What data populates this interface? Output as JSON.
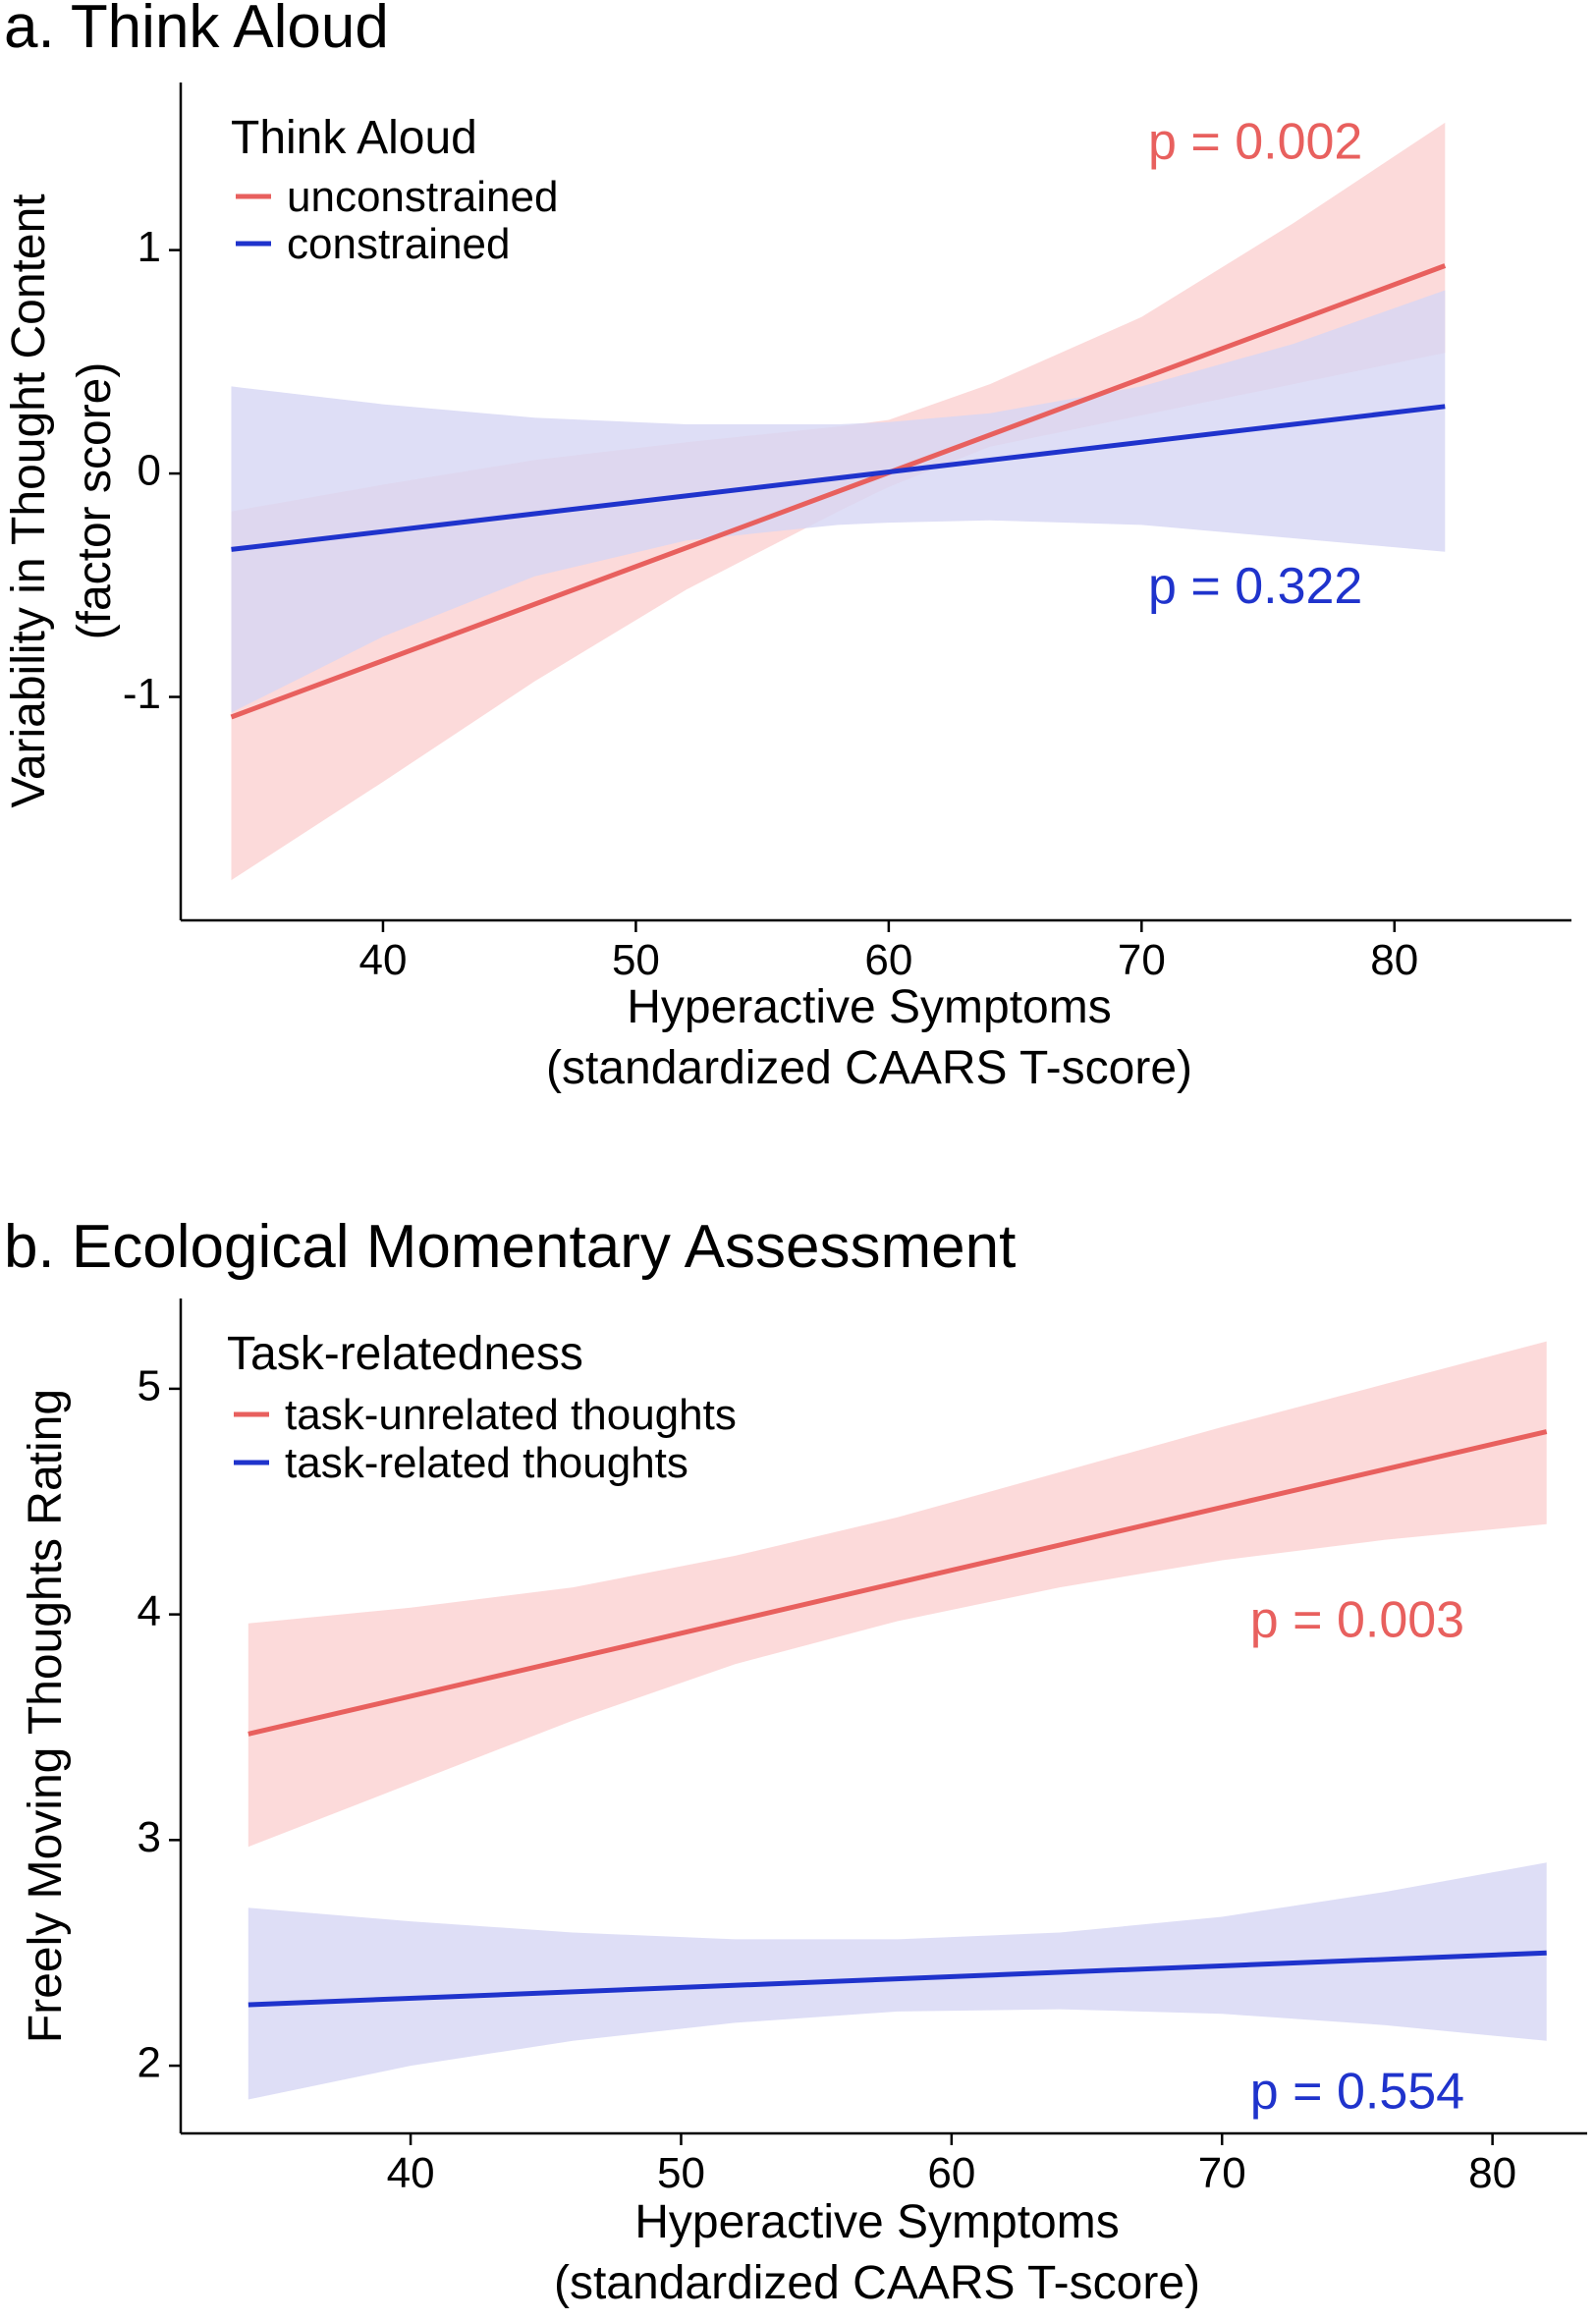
{
  "chart_data": [
    {
      "type": "line",
      "title": "a. Think Aloud",
      "xlabel": "Hyperactive Symptoms",
      "xlabel2": "(standardized CAARS T-score)",
      "ylabel": "Variability in Thought Content",
      "ylabel2": "(factor score)",
      "xlim": [
        32,
        87
      ],
      "ylim": [
        -2.0,
        1.75
      ],
      "xticks": [
        40,
        50,
        60,
        70,
        80
      ],
      "yticks": [
        -1,
        0,
        1
      ],
      "xtick_labels": [
        "40",
        "50",
        "60",
        "70",
        "80"
      ],
      "ytick_labels": [
        "-1",
        "0",
        "1"
      ],
      "legend_title": "Think Aloud",
      "legend_position": "top-left",
      "grid": false,
      "series": [
        {
          "name": "unconstrained",
          "color": "#e8605e",
          "band_color": "#fcd4d4",
          "x": [
            34,
            82
          ],
          "y": [
            -1.09,
            0.93
          ],
          "band_x": [
            34,
            40,
            46,
            52,
            58,
            60,
            64,
            70,
            76,
            82
          ],
          "band_upper": [
            -0.17,
            -0.05,
            0.06,
            0.14,
            0.21,
            0.24,
            0.4,
            0.7,
            1.12,
            1.57
          ],
          "band_lower": [
            -1.82,
            -1.38,
            -0.93,
            -0.52,
            -0.17,
            -0.06,
            0.12,
            0.26,
            0.4,
            0.54
          ],
          "annotation": "p = 0.002",
          "annotation_x": 74.5,
          "annotation_y": 1.47
        },
        {
          "name": "constrained",
          "color": "#1f33cc",
          "band_color": "#d6d6f4",
          "x": [
            34,
            82
          ],
          "y": [
            -0.34,
            0.3
          ],
          "band_x": [
            34,
            40,
            46,
            52,
            58,
            60,
            64,
            70,
            76,
            82
          ],
          "band_upper": [
            0.39,
            0.31,
            0.25,
            0.22,
            0.22,
            0.23,
            0.27,
            0.39,
            0.58,
            0.82
          ],
          "band_lower": [
            -1.07,
            -0.73,
            -0.46,
            -0.3,
            -0.23,
            -0.22,
            -0.21,
            -0.23,
            -0.29,
            -0.35
          ],
          "annotation": "p = 0.322",
          "annotation_x": 74.5,
          "annotation_y": -0.52
        }
      ]
    },
    {
      "type": "line",
      "title": "b. Ecological Momentary Assessment",
      "xlabel": "Hyperactive Symptoms",
      "xlabel2": "(standardized CAARS T-score)",
      "ylabel": "Freely Moving Thoughts Rating",
      "ylabel2": "",
      "xlim": [
        31.5,
        83.5
      ],
      "ylim": [
        1.7,
        5.4
      ],
      "xticks": [
        40,
        50,
        60,
        70,
        80
      ],
      "yticks": [
        2,
        3,
        4,
        5
      ],
      "xtick_labels": [
        "40",
        "50",
        "60",
        "70",
        "80"
      ],
      "ytick_labels": [
        "2",
        "3",
        "4",
        "5"
      ],
      "legend_title": "Task-relatedness",
      "legend_position": "top-left",
      "grid": false,
      "series": [
        {
          "name": "task-unrelated thoughts",
          "color": "#e8605e",
          "band_color": "#fcd4d4",
          "x": [
            34,
            82
          ],
          "y": [
            3.47,
            4.81
          ],
          "band_x": [
            34,
            40,
            46,
            52,
            58,
            64,
            70,
            76,
            82
          ],
          "band_upper": [
            3.96,
            4.03,
            4.12,
            4.26,
            4.43,
            4.63,
            4.83,
            5.02,
            5.21
          ],
          "band_lower": [
            2.97,
            3.25,
            3.53,
            3.78,
            3.97,
            4.12,
            4.24,
            4.33,
            4.4
          ],
          "annotation": "p = 0.003",
          "annotation_x": 75,
          "annotation_y": 3.96
        },
        {
          "name": "task-related thoughts",
          "color": "#1f33cc",
          "band_color": "#d6d6f4",
          "x": [
            34,
            82
          ],
          "y": [
            2.27,
            2.5
          ],
          "band_x": [
            34,
            40,
            46,
            52,
            58,
            64,
            70,
            76,
            82
          ],
          "band_upper": [
            2.7,
            2.64,
            2.59,
            2.56,
            2.56,
            2.59,
            2.66,
            2.77,
            2.9
          ],
          "band_lower": [
            1.85,
            2.0,
            2.11,
            2.19,
            2.24,
            2.25,
            2.23,
            2.18,
            2.11
          ],
          "annotation": "p = 0.554",
          "annotation_x": 75,
          "annotation_y": 1.87
        }
      ]
    }
  ]
}
